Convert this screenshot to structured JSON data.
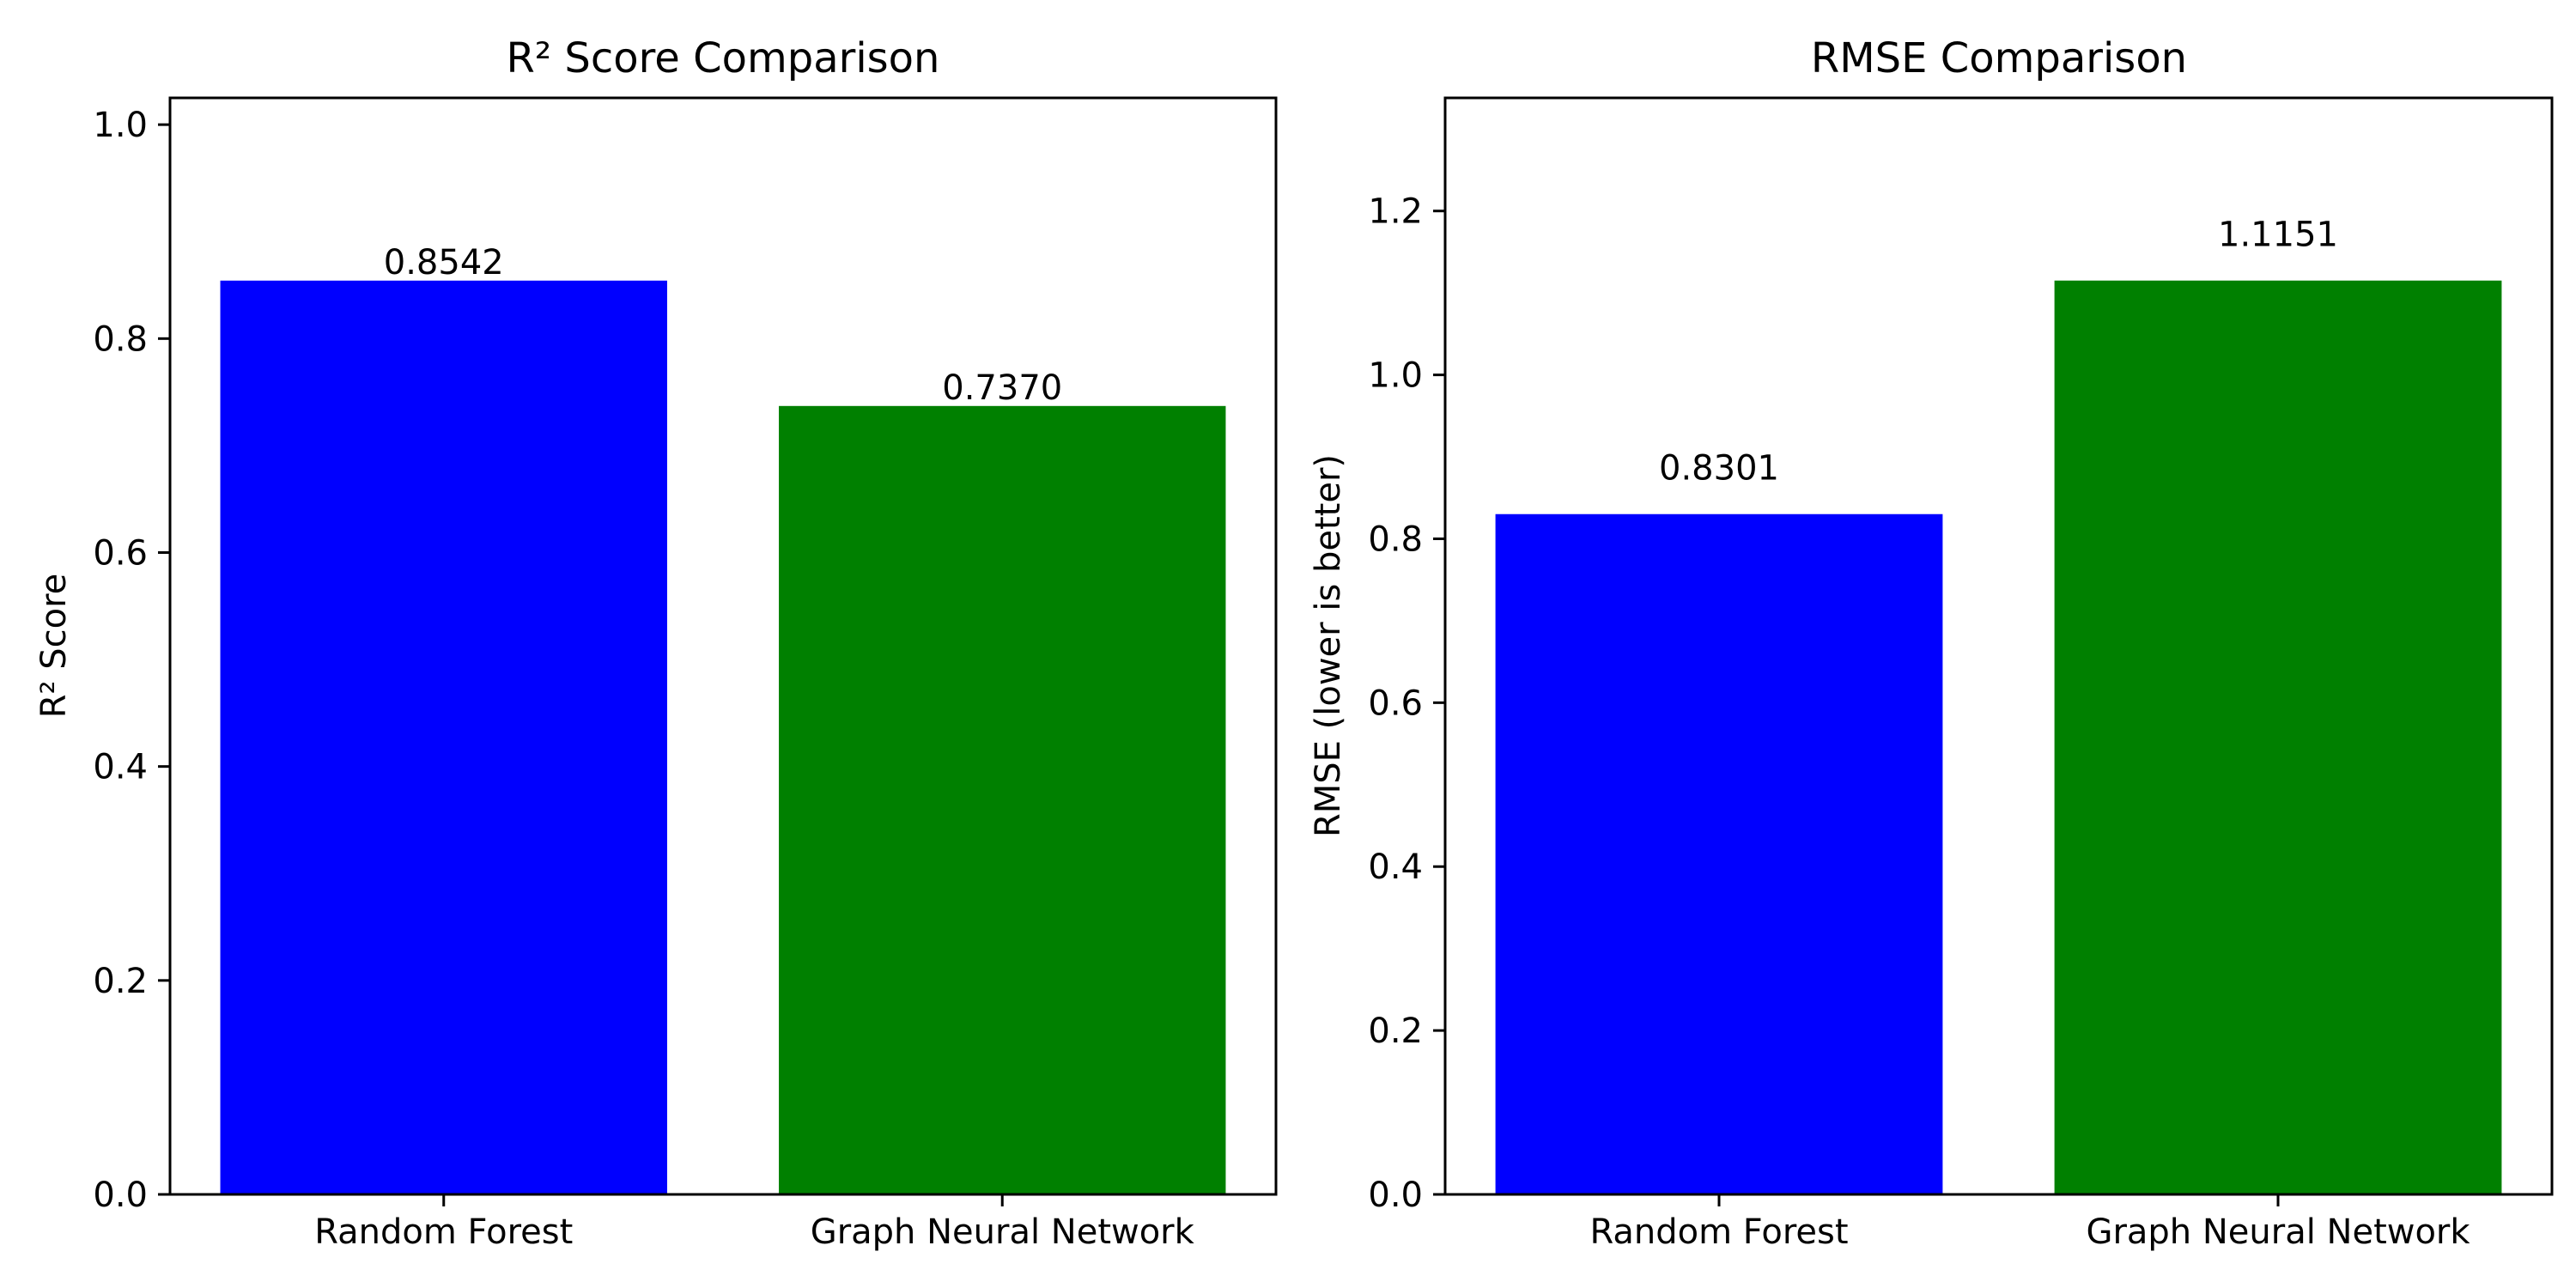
{
  "chart_data": [
    {
      "type": "bar",
      "title": "R² Score Comparison",
      "xlabel": "",
      "ylabel": "R² Score",
      "categories": [
        "Random Forest",
        "Graph Neural Network"
      ],
      "values": [
        0.8542,
        0.737
      ],
      "value_labels": [
        "0.8542",
        "0.7370"
      ],
      "colors": [
        "#0000ff",
        "#008000"
      ],
      "ylim": [
        0,
        1.025
      ],
      "yticks": [
        0.0,
        0.2,
        0.4,
        0.6,
        0.8,
        1.0
      ],
      "ytick_labels": [
        "0.0",
        "0.2",
        "0.4",
        "0.6",
        "0.8",
        "1.0"
      ],
      "grid": false,
      "legend": "none"
    },
    {
      "type": "bar",
      "title": "RMSE Comparison",
      "xlabel": "",
      "ylabel": "RMSE (lower is better)",
      "categories": [
        "Random Forest",
        "Graph Neural Network"
      ],
      "values": [
        0.8301,
        1.1151
      ],
      "value_labels": [
        "0.8301",
        "1.1151"
      ],
      "colors": [
        "#0000ff",
        "#008000"
      ],
      "ylim": [
        0,
        1.338
      ],
      "yticks": [
        0.0,
        0.2,
        0.4,
        0.6,
        0.8,
        1.0,
        1.2
      ],
      "ytick_labels": [
        "0.0",
        "0.2",
        "0.4",
        "0.6",
        "0.8",
        "1.0",
        "1.2"
      ],
      "grid": false,
      "legend": "none"
    }
  ]
}
